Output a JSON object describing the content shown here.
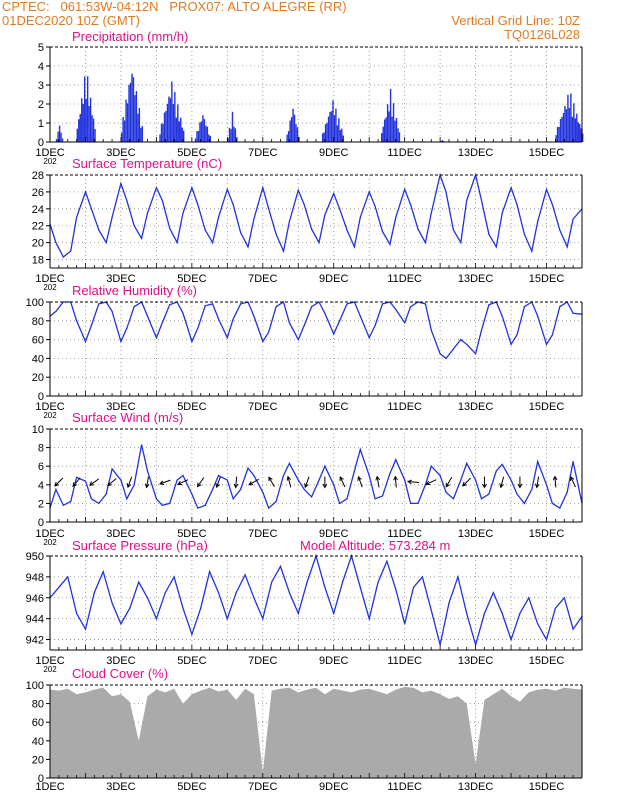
{
  "header": {
    "line1_left": "CPTEC:   061:53W-04:12N   PROX07: ALTO ALEGRE (RR)",
    "line2_left": "01DEC2020 10Z (GMT)",
    "line2_right": "Vertical Grid Line: 10Z",
    "line3_right": "TQ0126L028"
  },
  "colors": {
    "header": "#e07a20",
    "title": "#e0108a",
    "line": "#2233dd",
    "cloud": "#aaaaaa"
  },
  "x_axis": {
    "day_ticks": [
      "1DEC",
      "3DEC",
      "5DEC",
      "7DEC",
      "9DEC",
      "11DEC",
      "13DEC",
      "15DEC"
    ],
    "year_fragment": "202"
  },
  "chart_data": [
    {
      "id": "precip",
      "type": "bar",
      "title": "Precipitation (mm/h)",
      "ylim": [
        0,
        5
      ],
      "yticks": [
        "0",
        "1",
        "2",
        "3",
        "4",
        "5"
      ],
      "x_unit": "hours since 01DEC2020 10Z",
      "xlim": [
        0,
        360
      ],
      "bursts": [
        {
          "start": 4,
          "end": 8,
          "peak": 1.0
        },
        {
          "start": 18,
          "end": 30,
          "peak": 4.0
        },
        {
          "start": 48,
          "end": 62,
          "peak": 4.2
        },
        {
          "start": 74,
          "end": 90,
          "peak": 3.3
        },
        {
          "start": 98,
          "end": 108,
          "peak": 1.6
        },
        {
          "start": 120,
          "end": 126,
          "peak": 1.6
        },
        {
          "start": 160,
          "end": 168,
          "peak": 2.0
        },
        {
          "start": 184,
          "end": 198,
          "peak": 2.3
        },
        {
          "start": 224,
          "end": 236,
          "peak": 2.8
        },
        {
          "start": 264,
          "end": 266,
          "peak": 0.1
        },
        {
          "start": 342,
          "end": 360,
          "peak": 2.8
        }
      ]
    },
    {
      "id": "temp",
      "type": "line",
      "title": "Surface Temperature (nC)",
      "ylim": [
        17,
        28
      ],
      "yticks": [
        "18",
        "20",
        "22",
        "24",
        "26",
        "28"
      ],
      "x_unit": "hours since 01DEC2020 10Z",
      "xlim": [
        0,
        360
      ],
      "x": [
        0,
        4,
        9,
        14,
        18,
        24,
        28,
        33,
        38,
        42,
        48,
        52,
        57,
        62,
        66,
        72,
        76,
        81,
        86,
        90,
        96,
        100,
        105,
        110,
        114,
        120,
        124,
        129,
        134,
        138,
        144,
        148,
        153,
        158,
        162,
        168,
        172,
        177,
        182,
        186,
        192,
        196,
        201,
        206,
        210,
        216,
        220,
        225,
        230,
        234,
        240,
        244,
        249,
        254,
        258,
        264,
        268,
        273,
        278,
        282,
        288,
        292,
        297,
        302,
        306,
        312,
        316,
        321,
        326,
        330,
        336,
        340,
        345,
        350,
        354,
        360
      ],
      "y": [
        22.2,
        20,
        18.3,
        19,
        23,
        26,
        24,
        21.5,
        20,
        23,
        27,
        25,
        22,
        20.5,
        23.5,
        26.5,
        25,
        21.7,
        20,
        23.5,
        26.5,
        24.5,
        21.5,
        20,
        23,
        26.3,
        24.5,
        21.2,
        19.5,
        22.8,
        26.5,
        24,
        21,
        19,
        22.5,
        26.2,
        24.5,
        21.6,
        20,
        23.3,
        25.8,
        24,
        21.5,
        19.5,
        23,
        26,
        24.3,
        21.3,
        19.8,
        23,
        26.3,
        24.5,
        21.6,
        20,
        23.5,
        28,
        26,
        21.5,
        20,
        25,
        28,
        25,
        21,
        19.5,
        23.5,
        26.5,
        24.5,
        21,
        19,
        22.5,
        26.3,
        24.5,
        21.5,
        19.5,
        22.8,
        24
      ]
    },
    {
      "id": "rh",
      "type": "line",
      "title": "Relative Humidity (%)",
      "ylim": [
        0,
        100
      ],
      "yticks": [
        "0",
        "20",
        "40",
        "60",
        "80",
        "100"
      ],
      "x_unit": "hours since 01DEC2020 10Z",
      "xlim": [
        0,
        360
      ],
      "x": [
        0,
        4,
        9,
        14,
        18,
        24,
        28,
        33,
        38,
        42,
        48,
        52,
        57,
        62,
        66,
        72,
        76,
        81,
        86,
        90,
        96,
        100,
        105,
        110,
        114,
        120,
        124,
        129,
        134,
        138,
        144,
        148,
        153,
        158,
        162,
        168,
        172,
        177,
        182,
        186,
        192,
        196,
        201,
        206,
        210,
        216,
        220,
        225,
        230,
        234,
        240,
        244,
        249,
        254,
        258,
        264,
        268,
        273,
        278,
        282,
        288,
        292,
        297,
        302,
        306,
        312,
        316,
        321,
        326,
        330,
        336,
        340,
        345,
        350,
        354,
        360
      ],
      "y": [
        85,
        90,
        100,
        100,
        80,
        58,
        75,
        98,
        100,
        90,
        58,
        72,
        95,
        100,
        85,
        62,
        78,
        97,
        100,
        88,
        58,
        72,
        96,
        98,
        82,
        62,
        82,
        98,
        100,
        85,
        58,
        68,
        95,
        100,
        78,
        60,
        75,
        95,
        100,
        88,
        66,
        80,
        98,
        100,
        85,
        62,
        75,
        98,
        100,
        92,
        78,
        95,
        100,
        98,
        70,
        45,
        40,
        50,
        60,
        55,
        45,
        70,
        97,
        100,
        85,
        55,
        65,
        95,
        100,
        85,
        55,
        65,
        95,
        100,
        88,
        87
      ]
    },
    {
      "id": "wind",
      "type": "line",
      "title": "Surface Wind (m/s)",
      "ylim": [
        0,
        10
      ],
      "yticks": [
        "0",
        "2",
        "4",
        "6",
        "8",
        "10"
      ],
      "x_unit": "hours since 01DEC2020 10Z",
      "xlim": [
        0,
        360
      ],
      "x": [
        0,
        4,
        9,
        14,
        18,
        24,
        28,
        33,
        38,
        42,
        48,
        52,
        57,
        62,
        66,
        72,
        76,
        81,
        86,
        90,
        96,
        100,
        105,
        110,
        114,
        120,
        124,
        129,
        134,
        138,
        144,
        148,
        153,
        158,
        162,
        168,
        172,
        177,
        182,
        186,
        192,
        196,
        201,
        206,
        210,
        216,
        220,
        225,
        230,
        234,
        240,
        244,
        249,
        254,
        258,
        264,
        268,
        273,
        278,
        282,
        288,
        292,
        297,
        302,
        306,
        312,
        316,
        321,
        326,
        330,
        336,
        340,
        345,
        350,
        354,
        360
      ],
      "y": [
        1.5,
        3.5,
        1.8,
        2.2,
        4.8,
        4.4,
        2.5,
        2,
        3,
        5.7,
        4.5,
        2.5,
        4,
        8.3,
        5.5,
        2.5,
        1.8,
        2,
        4.5,
        5,
        3,
        1.5,
        1.8,
        3.5,
        5,
        4.5,
        2.5,
        3.5,
        5.8,
        5,
        3.2,
        1.5,
        2.2,
        5,
        6.3,
        4.5,
        3.5,
        2.7,
        4.5,
        6,
        4,
        2,
        2.5,
        5.5,
        7.8,
        5,
        2.5,
        2.8,
        5.2,
        6.7,
        4.5,
        2,
        2,
        4,
        6,
        5,
        3.2,
        2.5,
        4.5,
        6.3,
        4.5,
        2.5,
        3,
        5.5,
        6.2,
        4.5,
        3,
        2,
        3.5,
        6.5,
        4,
        2,
        1.5,
        3.2,
        6.5,
        2
      ]
    },
    {
      "id": "pressure",
      "type": "line",
      "title": "Surface Pressure (hPa)",
      "annotation": "Model Altitude: 573.284 m",
      "ylim": [
        941,
        950
      ],
      "yticks": [
        "942",
        "944",
        "946",
        "948",
        "950"
      ],
      "x_unit": "hours since 01DEC2020 10Z",
      "xlim": [
        0,
        360
      ],
      "x": [
        0,
        6,
        12,
        18,
        24,
        30,
        36,
        42,
        48,
        54,
        60,
        66,
        72,
        78,
        84,
        90,
        96,
        102,
        108,
        114,
        120,
        126,
        132,
        138,
        144,
        150,
        156,
        162,
        168,
        174,
        180,
        186,
        192,
        198,
        204,
        210,
        216,
        222,
        228,
        234,
        240,
        246,
        252,
        258,
        264,
        270,
        276,
        282,
        288,
        294,
        300,
        306,
        312,
        318,
        324,
        330,
        336,
        342,
        348,
        354,
        360
      ],
      "y": [
        946,
        947,
        948,
        944.5,
        943,
        946.5,
        948.5,
        945.5,
        943.5,
        945,
        947.5,
        946,
        944,
        946.5,
        948,
        945,
        942.5,
        945,
        948.5,
        946.5,
        944,
        946.5,
        948.2,
        946,
        944,
        947.5,
        949,
        946.5,
        944.5,
        947.5,
        950,
        947,
        944.5,
        947.5,
        950,
        947,
        944,
        947.5,
        949.5,
        946.8,
        943.5,
        947,
        948,
        944.8,
        941.5,
        945.5,
        948,
        944.5,
        941.5,
        944.5,
        946.5,
        944.5,
        942,
        944.5,
        946,
        943.5,
        942,
        945,
        946,
        943,
        944.2
      ]
    },
    {
      "id": "cloud",
      "type": "area",
      "title": "Cloud Cover (%)",
      "ylim": [
        0,
        100
      ],
      "yticks": [
        "0",
        "20",
        "40",
        "60",
        "80",
        "100"
      ],
      "x_unit": "hours since 01DEC2020 10Z",
      "xlim": [
        0,
        360
      ],
      "x": [
        0,
        6,
        12,
        18,
        24,
        30,
        36,
        42,
        48,
        54,
        60,
        66,
        72,
        78,
        84,
        90,
        96,
        102,
        108,
        114,
        120,
        126,
        132,
        138,
        144,
        150,
        156,
        162,
        168,
        174,
        180,
        186,
        192,
        198,
        204,
        210,
        216,
        222,
        228,
        234,
        240,
        246,
        252,
        258,
        264,
        270,
        276,
        282,
        288,
        294,
        300,
        306,
        312,
        318,
        324,
        330,
        336,
        342,
        348,
        354,
        360
      ],
      "y": [
        95,
        94,
        96,
        90,
        92,
        95,
        97,
        88,
        90,
        82,
        40,
        88,
        95,
        92,
        96,
        80,
        90,
        94,
        97,
        93,
        95,
        84,
        96,
        90,
        6,
        94,
        96,
        97,
        92,
        95,
        97,
        90,
        96,
        94,
        92,
        95,
        96,
        93,
        90,
        95,
        98,
        97,
        92,
        94,
        90,
        85,
        88,
        80,
        15,
        84,
        90,
        96,
        88,
        82,
        92,
        95,
        96,
        94,
        97,
        96,
        95
      ]
    }
  ],
  "wind_arrows": {
    "directions_deg": [
      225,
      230,
      215,
      220,
      250,
      260,
      200,
      205,
      235,
      250,
      265,
      210,
      120,
      105,
      250,
      270,
      115,
      110,
      100,
      95,
      175,
      205,
      240,
      225,
      270,
      255,
      270,
      260,
      95,
      115
    ]
  }
}
